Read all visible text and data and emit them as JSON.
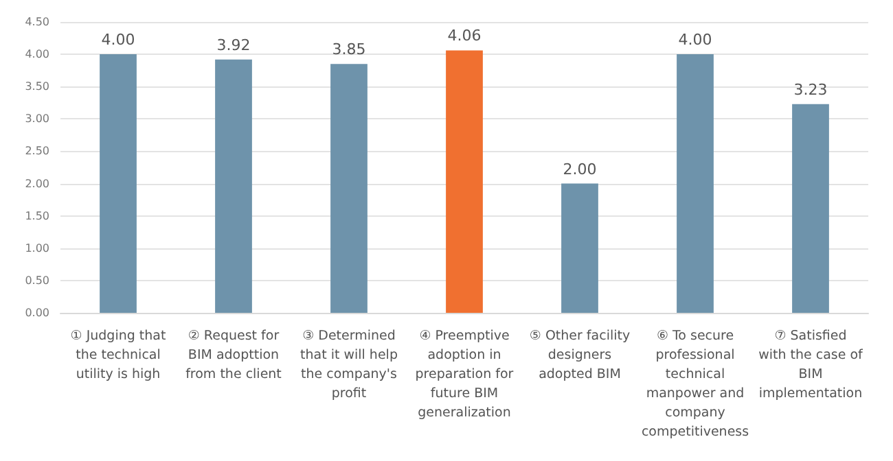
{
  "chart_data": {
    "type": "bar",
    "categories": [
      "① Judging that\nthe technical\nutility is high",
      "② Request for\nBIM adopttion\nfrom the client",
      "③ Determined\nthat it will help\nthe company's\nprofit",
      "④ Preemptive\nadoption in\npreparation for\nfuture BIM\ngeneralization",
      "⑤ Other facility\ndesigners\nadopted BIM",
      "⑥ To secure\nprofessional\ntechnical\nmanpower and\ncompany\ncompetitiveness",
      "⑦ Satisfied\nwith the case of\nBIM\nimplementation"
    ],
    "values": [
      4.0,
      3.92,
      3.85,
      4.06,
      2.0,
      4.0,
      3.23
    ],
    "value_labels": [
      "4.00",
      "3.92",
      "3.85",
      "4.06",
      "2.00",
      "4.00",
      "3.23"
    ],
    "colors": [
      "#6e93ab",
      "#6e93ab",
      "#6e93ab",
      "#f07030",
      "#6e93ab",
      "#6e93ab",
      "#6e93ab"
    ],
    "ylim": [
      0,
      4.5
    ],
    "yticks": [
      {
        "value": 0,
        "label": "0.00"
      },
      {
        "value": 0.5,
        "label": "0.50"
      },
      {
        "value": 1,
        "label": "1.00"
      },
      {
        "value": 1.5,
        "label": "1.50"
      },
      {
        "value": 2,
        "label": "2.00"
      },
      {
        "value": 2.5,
        "label": "2.50"
      },
      {
        "value": 3,
        "label": "3.00"
      },
      {
        "value": 3.5,
        "label": "3.50"
      },
      {
        "value": 4,
        "label": "4.00"
      },
      {
        "value": 4.5,
        "label": "4.50"
      }
    ],
    "grid": true
  }
}
